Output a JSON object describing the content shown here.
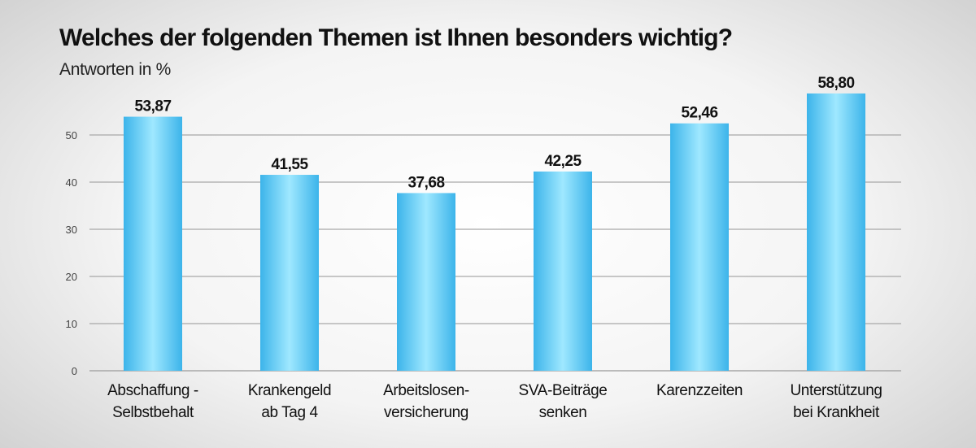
{
  "chart_data": {
    "type": "bar",
    "title": "Welches der folgenden Themen ist Ihnen besonders wichtig?",
    "subtitle": "Antworten in %",
    "categories": [
      [
        "Abschaffung -",
        "Selbstbehalt"
      ],
      [
        "Krankengeld",
        "ab Tag 4"
      ],
      [
        "Arbeitslosen-",
        "versicherung"
      ],
      [
        "SVA-Beiträge",
        "senken"
      ],
      [
        "Karenzzeiten"
      ],
      [
        "Unterstützung",
        "bei Krankheit"
      ]
    ],
    "values": [
      53.87,
      41.55,
      37.68,
      42.25,
      52.46,
      58.8
    ],
    "value_labels": [
      "53,87",
      "41,55",
      "37,68",
      "42,25",
      "52,46",
      "58,80"
    ],
    "y_ticks": [
      0,
      10,
      20,
      30,
      40,
      50
    ],
    "ylim": [
      0,
      60
    ],
    "grid": true,
    "legend": "none",
    "colors": {
      "bar_edge": "#3cb4ea",
      "bar_center": "#9fe8ff",
      "grid": "#a8a8a8"
    }
  }
}
